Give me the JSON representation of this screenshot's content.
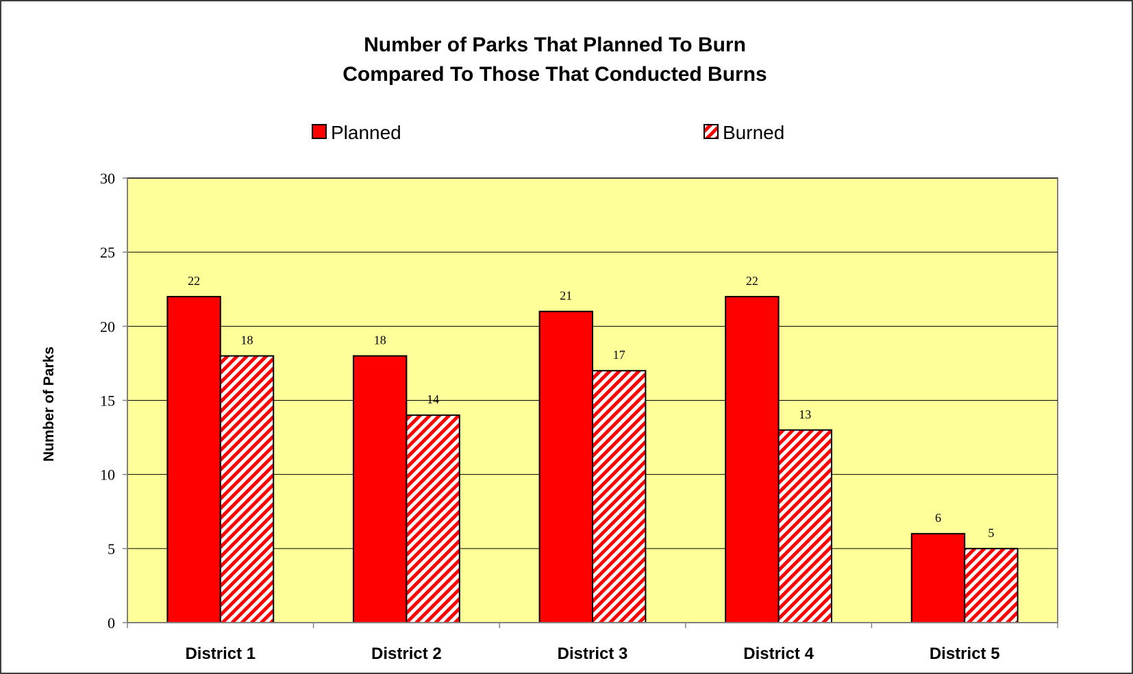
{
  "chart_data": {
    "type": "bar",
    "title_lines": [
      "Number of Parks That Planned To Burn",
      "Compared To Those That Conducted Burns"
    ],
    "xlabel": "",
    "ylabel": "Number of Parks",
    "categories": [
      "District 1",
      "District 2",
      "District 3",
      "District 4",
      "District 5"
    ],
    "series": [
      {
        "name": "Planned",
        "values": [
          22,
          18,
          21,
          22,
          6
        ],
        "pattern": "solid"
      },
      {
        "name": "Burned",
        "values": [
          18,
          14,
          17,
          13,
          5
        ],
        "pattern": "diagonal-hatch"
      }
    ],
    "ylim": [
      0,
      30
    ],
    "yticks": [
      0,
      5,
      10,
      15,
      20,
      25,
      30
    ],
    "grid": true,
    "legend_position": "top",
    "data_labels": true,
    "colors": {
      "bar_fill": "#ff0000",
      "hatch_background": "#ffffff",
      "plot_background": "#ffff99",
      "gridline": "#000000",
      "border": "#000000",
      "axis": "#808080"
    }
  }
}
